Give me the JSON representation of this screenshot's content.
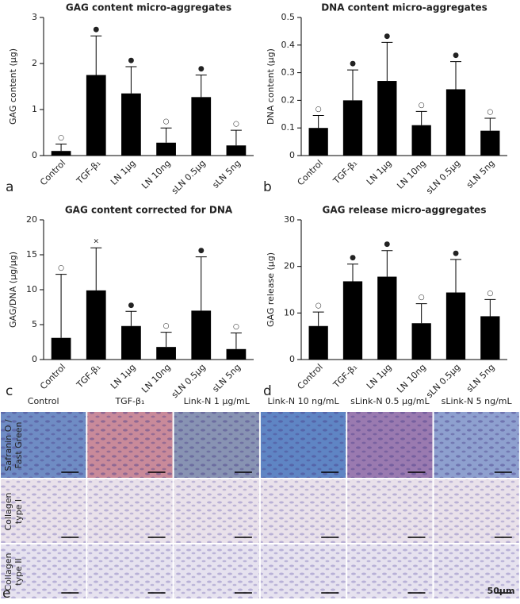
{
  "chart_data": [
    {
      "type": "bar",
      "title": "GAG content micro-aggregates",
      "y_label": "GAG content (µg)",
      "panel_label": "a",
      "categories": [
        "Control",
        "TGF-β₁",
        "LN 1µg",
        "LN 10ng",
        "sLN 0.5µg",
        "sLN 5ng"
      ],
      "values": [
        0.1,
        1.75,
        1.35,
        0.28,
        1.27,
        0.22
      ],
      "errors": [
        0.15,
        0.85,
        0.58,
        0.32,
        0.48,
        0.33
      ],
      "markers": [
        "○",
        "●",
        "●",
        "○",
        "●",
        "○"
      ],
      "color": "#000000",
      "ylim": [
        0,
        3
      ],
      "yticks": [
        0,
        1,
        2,
        3
      ]
    },
    {
      "type": "bar",
      "title": "DNA content micro-aggregates",
      "y_label": "DNA content (µg)",
      "panel_label": "b",
      "categories": [
        "Control",
        "TGF-β₁",
        "LN 1µg",
        "LN 10ng",
        "sLN 0.5µg",
        "sLN 5ng"
      ],
      "values": [
        0.1,
        0.2,
        0.27,
        0.11,
        0.24,
        0.09
      ],
      "errors": [
        0.045,
        0.11,
        0.14,
        0.05,
        0.1,
        0.045
      ],
      "markers": [
        "○",
        "●",
        "●",
        "○",
        "●",
        "○"
      ],
      "color": "#000000",
      "ylim": [
        0,
        0.5
      ],
      "yticks": [
        0,
        0.1,
        0.2,
        0.3,
        0.4,
        0.5
      ]
    },
    {
      "type": "bar",
      "title": "GAG content corrected for DNA",
      "y_label": "GAG/DNA (µg/µg)",
      "panel_label": "c",
      "categories": [
        "Control",
        "TGF-β₁",
        "LN 1µg",
        "LN 10ng",
        "sLN 0.5µg",
        "sLN 5ng"
      ],
      "values": [
        3.1,
        9.9,
        4.8,
        1.8,
        7.0,
        1.5
      ],
      "errors": [
        9.1,
        6.1,
        2.1,
        2.1,
        7.7,
        2.3
      ],
      "markers": [
        "○",
        "×",
        "●",
        "○",
        "●",
        "○"
      ],
      "color": "#000000",
      "ylim": [
        0,
        20
      ],
      "yticks": [
        0,
        5,
        10,
        15,
        20
      ]
    },
    {
      "type": "bar",
      "title": "GAG release micro-aggregates",
      "y_label": "GAG release (µg)",
      "panel_label": "d",
      "categories": [
        "Control",
        "TGF-β₁",
        "LN 1µg",
        "LN 10ng",
        "sLN 0.5µg",
        "sLN 5ng"
      ],
      "values": [
        7.2,
        16.8,
        17.8,
        7.8,
        14.4,
        9.3
      ],
      "errors": [
        3.0,
        3.7,
        5.6,
        4.2,
        7.1,
        3.6
      ],
      "markers": [
        "○",
        "●",
        "●",
        "○",
        "●",
        "○"
      ],
      "color": "#000000",
      "ylim": [
        0,
        30
      ],
      "yticks": [
        0,
        10,
        20,
        30
      ]
    }
  ],
  "histology": {
    "panel_label": "e",
    "scale_label": "50µm",
    "columns": [
      "Control",
      "TGF-β₁",
      "Link-N 1 µg/mL",
      "Link-N 10 ng/mL",
      "sLink-N 0.5 µg/mL",
      "sLink-N 5 ng/mL"
    ],
    "rows": [
      [
        "Safranin O /",
        "Fast Green"
      ],
      [
        "Collagen",
        "type I"
      ],
      [
        "Collagen",
        "type II"
      ]
    ]
  }
}
